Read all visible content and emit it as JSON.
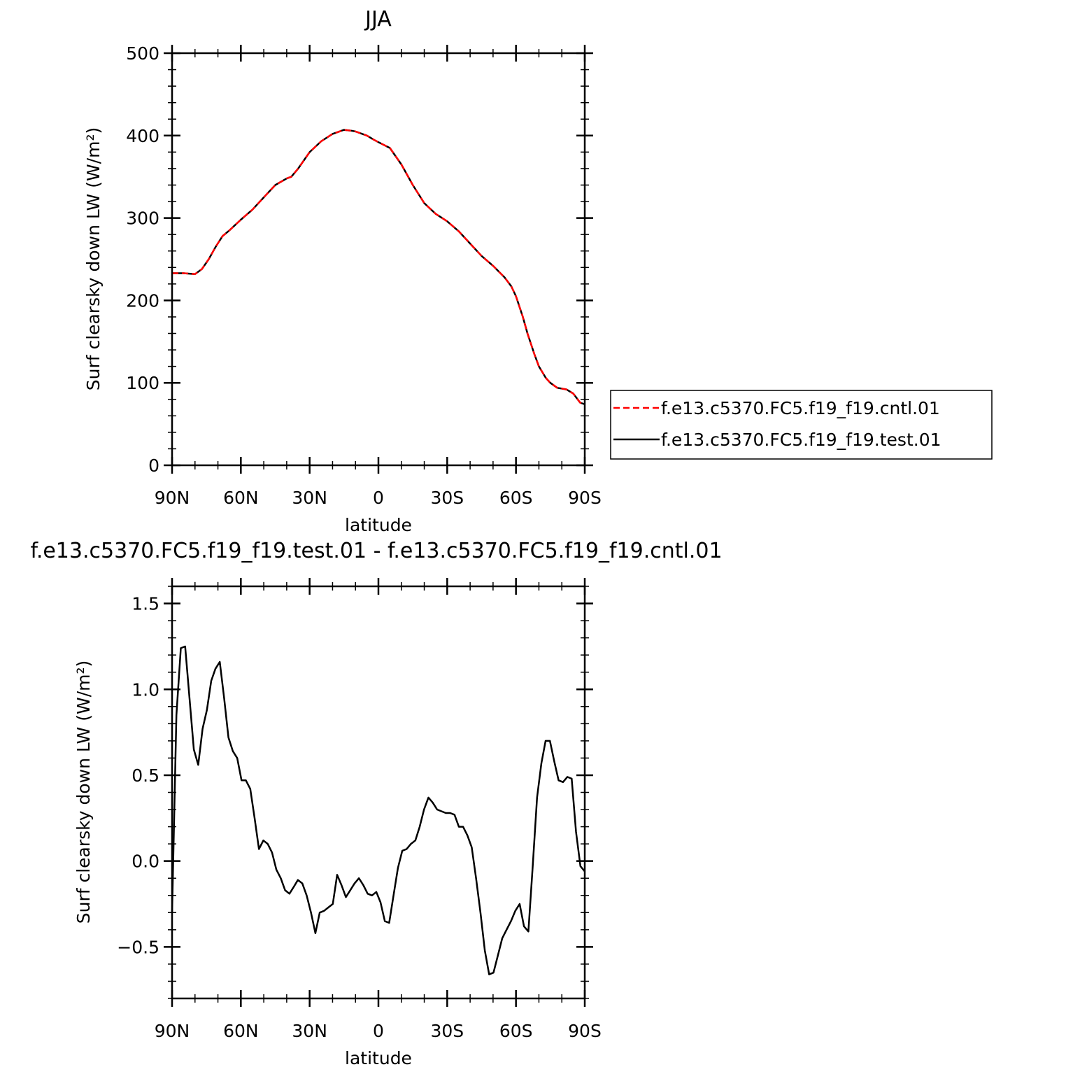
{
  "chart_data": [
    {
      "type": "line",
      "title": "JJA",
      "xlabel": "latitude",
      "ylabel": "Surf clearsky down LW (W/m²)",
      "xlim": [
        90,
        -90
      ],
      "ylim": [
        0,
        500
      ],
      "yticks": [
        0,
        100,
        200,
        300,
        400,
        500
      ],
      "xticks": [
        90,
        60,
        30,
        0,
        -30,
        -60,
        -90
      ],
      "xtick_labels": [
        "90N",
        "60N",
        "30N",
        "0",
        "30S",
        "60S",
        "90S"
      ],
      "grid": false,
      "legend_position": "right",
      "series": [
        {
          "name": "f.e13.c5370.FC5.f19_f19.cntl.01",
          "color": "#ff0000",
          "style": "dashed",
          "x": [
            90,
            85,
            80,
            77,
            74,
            71,
            68,
            65,
            60,
            55,
            50,
            45,
            40,
            38,
            35,
            30,
            25,
            20,
            15,
            12,
            10,
            5,
            2,
            0,
            -5,
            -10,
            -15,
            -20,
            -25,
            -30,
            -35,
            -40,
            -45,
            -50,
            -55,
            -58,
            -60,
            -63,
            -65,
            -68,
            -70,
            -73,
            -75,
            -78,
            -80,
            -82,
            -85,
            -88,
            -90
          ],
          "y": [
            233,
            233,
            232,
            238,
            250,
            265,
            278,
            285,
            298,
            310,
            325,
            340,
            348,
            350,
            360,
            380,
            393,
            402,
            407,
            406,
            405,
            400,
            395,
            392,
            385,
            365,
            340,
            318,
            305,
            296,
            284,
            269,
            254,
            242,
            228,
            217,
            205,
            180,
            160,
            135,
            120,
            106,
            100,
            94,
            93,
            92,
            87,
            76,
            74
          ]
        },
        {
          "name": "f.e13.c5370.FC5.f19_f19.test.01",
          "color": "#000000",
          "style": "solid",
          "x": [
            90,
            85,
            80,
            77,
            74,
            71,
            68,
            65,
            60,
            55,
            50,
            45,
            40,
            38,
            35,
            30,
            25,
            20,
            15,
            12,
            10,
            5,
            2,
            0,
            -5,
            -10,
            -15,
            -20,
            -25,
            -30,
            -35,
            -40,
            -45,
            -50,
            -55,
            -58,
            -60,
            -63,
            -65,
            -68,
            -70,
            -73,
            -75,
            -78,
            -80,
            -82,
            -85,
            -88,
            -90
          ],
          "y": [
            233,
            233,
            232,
            238,
            250,
            265,
            278,
            285,
            298,
            310,
            325,
            340,
            348,
            350,
            360,
            380,
            393,
            402,
            407,
            406,
            405,
            400,
            395,
            392,
            385,
            365,
            340,
            318,
            305,
            296,
            284,
            269,
            254,
            242,
            228,
            217,
            205,
            180,
            160,
            135,
            120,
            106,
            100,
            94,
            93,
            92,
            87,
            76,
            74
          ]
        }
      ]
    },
    {
      "type": "line",
      "title": "f.e13.c5370.FC5.f19_f19.test.01 - f.e13.c5370.FC5.f19_f19.cntl.01",
      "xlabel": "latitude",
      "ylabel": "Surf clearsky down LW (W/m²)",
      "xlim": [
        90,
        -90
      ],
      "ylim": [
        -0.8,
        1.6
      ],
      "yticks": [
        -0.5,
        0.0,
        0.5,
        1.0,
        1.5
      ],
      "ytick_labels": [
        "-0.5",
        "0.0",
        "0.5",
        "1.0",
        "1.5"
      ],
      "xticks": [
        90,
        60,
        30,
        0,
        -30,
        -60,
        -90
      ],
      "xtick_labels": [
        "90N",
        "60N",
        "30N",
        "0",
        "30S",
        "60S",
        "90S"
      ],
      "grid": false,
      "series": [
        {
          "color": "#000000",
          "style": "solid",
          "x": [
            90,
            88.1,
            86.2,
            84.3,
            82.4,
            80.5,
            78.6,
            76.7,
            74.8,
            72.9,
            71.1,
            69.2,
            67.3,
            65.4,
            63.5,
            61.6,
            59.7,
            57.8,
            55.9,
            54.0,
            52.1,
            50.2,
            48.3,
            46.4,
            44.5,
            42.6,
            40.7,
            38.8,
            36.9,
            35.1,
            33.2,
            31.3,
            29.4,
            27.5,
            25.6,
            23.7,
            21.8,
            19.9,
            18.0,
            16.1,
            14.2,
            12.3,
            10.4,
            8.5,
            6.6,
            4.7,
            2.8,
            0.9,
            -0.9,
            -2.8,
            -4.7,
            -6.6,
            -8.5,
            -10.4,
            -12.3,
            -14.2,
            -16.1,
            -18.0,
            -19.9,
            -21.8,
            -23.7,
            -25.6,
            -27.5,
            -29.4,
            -31.3,
            -33.2,
            -35.1,
            -36.9,
            -38.8,
            -40.7,
            -42.6,
            -44.5,
            -46.4,
            -48.3,
            -50.2,
            -52.1,
            -54.0,
            -55.9,
            -57.8,
            -59.7,
            -61.6,
            -63.5,
            -65.4,
            -67.3,
            -69.2,
            -71.1,
            -72.9,
            -74.8,
            -76.7,
            -78.6,
            -80.5,
            -82.4,
            -84.3,
            -86.2,
            -88.1,
            -90
          ],
          "y": [
            -0.3,
            0.85,
            1.24,
            1.25,
            0.95,
            0.65,
            0.56,
            0.77,
            0.88,
            1.05,
            1.12,
            1.16,
            0.95,
            0.72,
            0.64,
            0.6,
            0.47,
            0.47,
            0.42,
            0.25,
            0.07,
            0.12,
            0.1,
            0.05,
            -0.05,
            -0.1,
            -0.17,
            -0.19,
            -0.15,
            -0.11,
            -0.13,
            -0.2,
            -0.3,
            -0.42,
            -0.3,
            -0.29,
            -0.27,
            -0.25,
            -0.08,
            -0.14,
            -0.21,
            -0.17,
            -0.13,
            -0.1,
            -0.14,
            -0.19,
            -0.2,
            -0.18,
            -0.24,
            -0.35,
            -0.36,
            -0.2,
            -0.04,
            0.06,
            0.07,
            0.1,
            0.12,
            0.2,
            0.3,
            0.37,
            0.34,
            0.3,
            0.29,
            0.28,
            0.28,
            0.27,
            0.2,
            0.2,
            0.15,
            0.08,
            -0.1,
            -0.3,
            -0.52,
            -0.66,
            -0.65,
            -0.55,
            -0.45,
            -0.4,
            -0.35,
            -0.29,
            -0.25,
            -0.38,
            -0.41,
            -0.03,
            0.37,
            0.57,
            0.7,
            0.7,
            0.58,
            0.47,
            0.46,
            0.49,
            0.48,
            0.17,
            -0.03,
            -0.06
          ]
        }
      ]
    }
  ]
}
